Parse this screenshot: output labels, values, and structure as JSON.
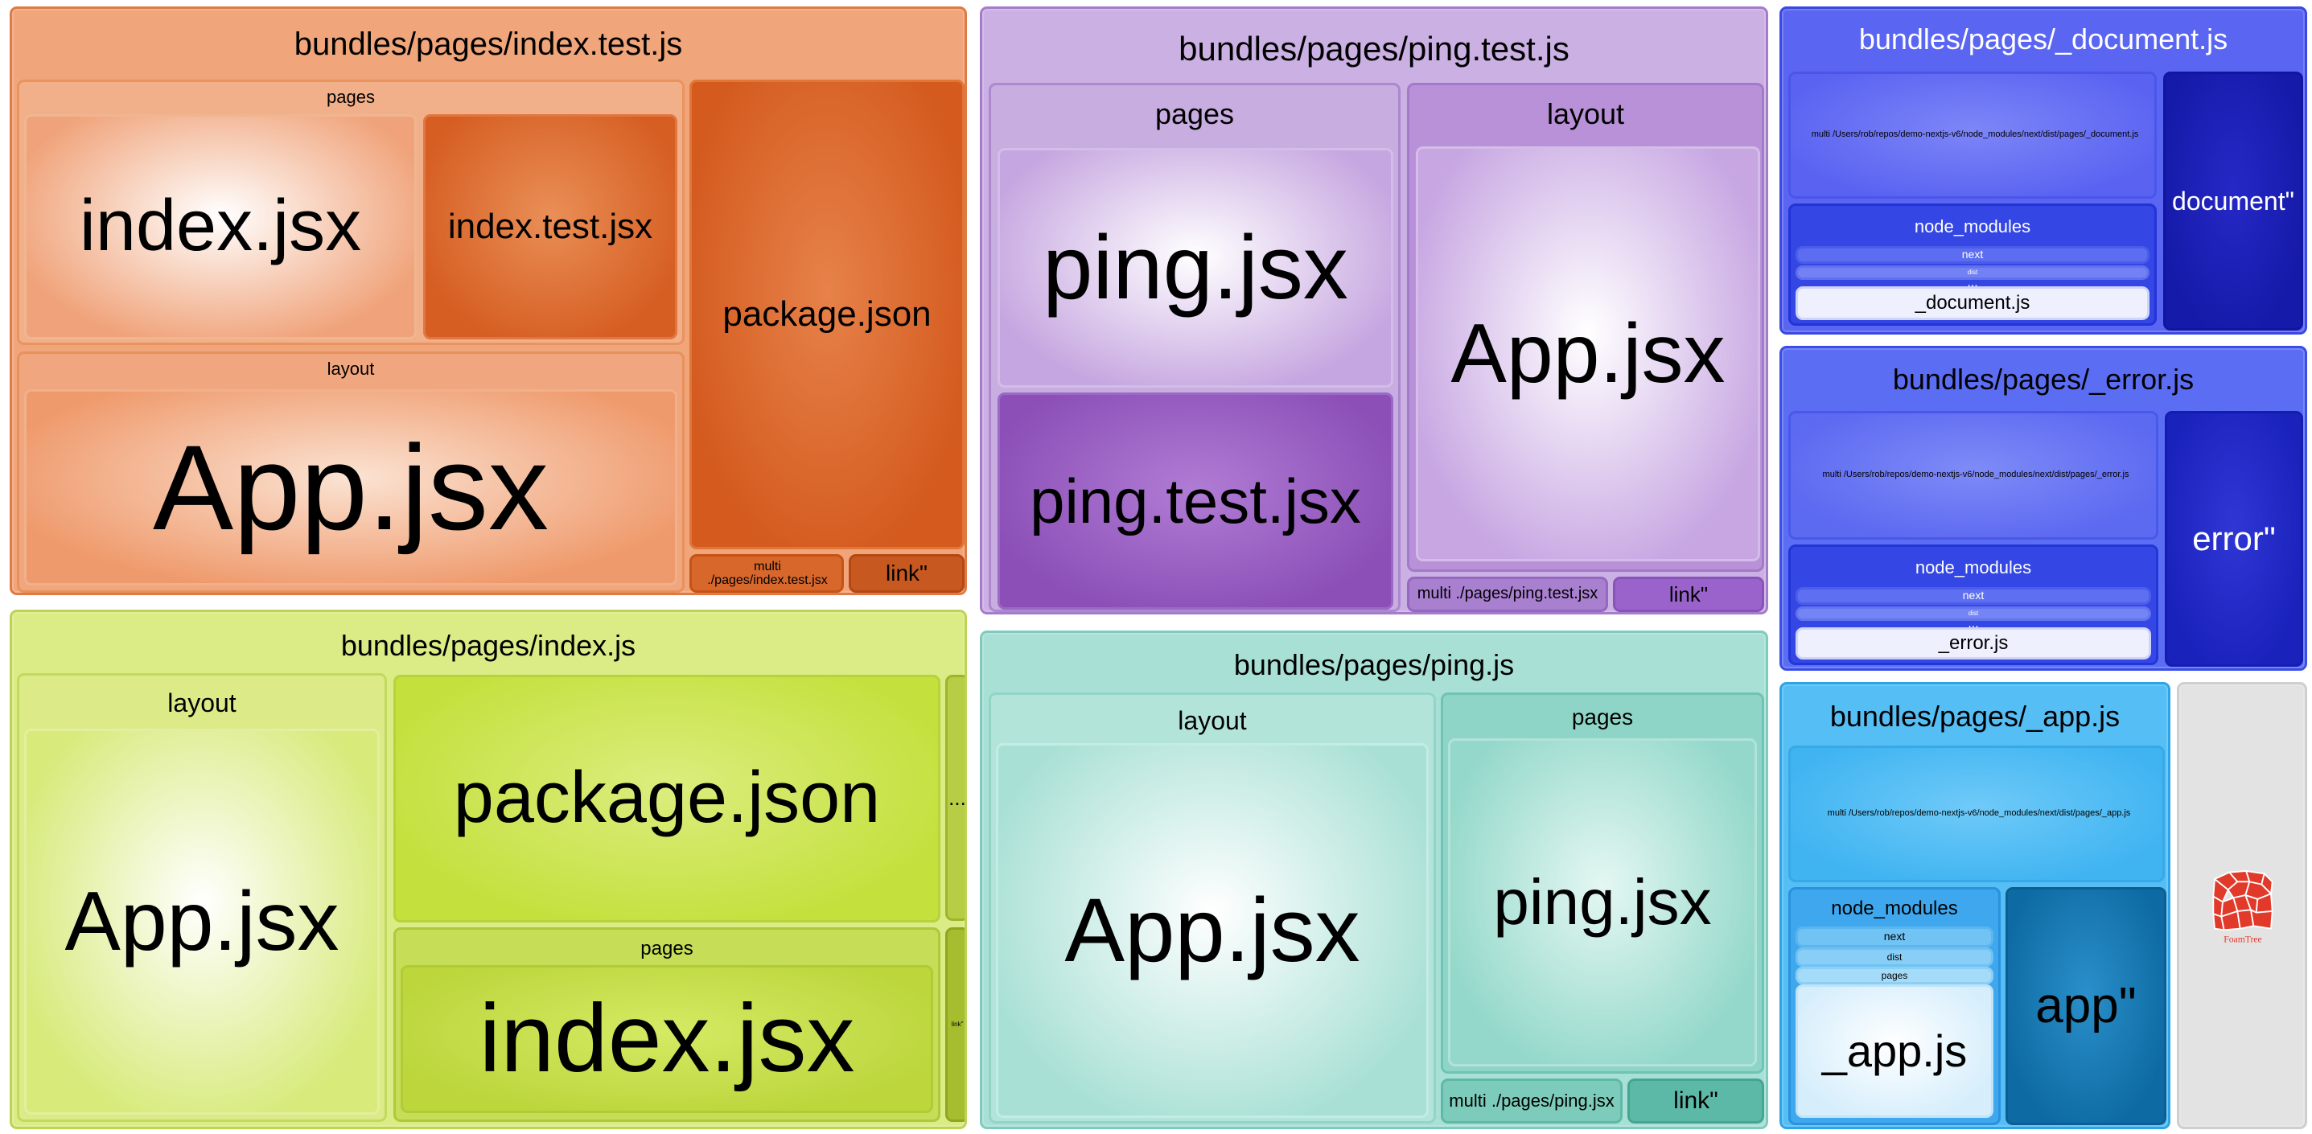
{
  "treemap": {
    "groups": [
      {
        "title": "bundles/pages/index.test.js",
        "children": [
          {
            "label": "pages",
            "children": [
              {
                "label": "index.jsx"
              },
              {
                "label": "index.test.jsx"
              }
            ]
          },
          {
            "label": "layout",
            "children": [
              {
                "label": "App.jsx"
              }
            ]
          },
          {
            "label": "package.json"
          },
          {
            "label": "multi ./pages/index.test.jsx"
          },
          {
            "label": "link\""
          }
        ]
      },
      {
        "title": "bundles/pages/ping.test.js",
        "children": [
          {
            "label": "pages",
            "children": [
              {
                "label": "ping.jsx"
              },
              {
                "label": "ping.test.jsx"
              }
            ]
          },
          {
            "label": "layout",
            "children": [
              {
                "label": "App.jsx"
              }
            ]
          },
          {
            "label": "multi ./pages/ping.test.jsx"
          },
          {
            "label": "link\""
          }
        ]
      },
      {
        "title": "bundles/pages/_document.js",
        "children": [
          {
            "label": "multi /Users/rob/repos/demo-nextjs-v6/node_modules/next/dist/pages/_document.js"
          },
          {
            "label": "node_modules",
            "children": [
              {
                "label": "next"
              },
              {
                "label": "dist"
              },
              {
                "label": "..."
              },
              {
                "label": "_document.js"
              }
            ]
          },
          {
            "label": "document\""
          }
        ]
      },
      {
        "title": "bundles/pages/_error.js",
        "children": [
          {
            "label": "multi /Users/rob/repos/demo-nextjs-v6/node_modules/next/dist/pages/_error.js"
          },
          {
            "label": "node_modules",
            "children": [
              {
                "label": "next"
              },
              {
                "label": "dist"
              },
              {
                "label": "..."
              },
              {
                "label": "_error.js"
              }
            ]
          },
          {
            "label": "error\""
          }
        ]
      },
      {
        "title": "bundles/pages/index.js",
        "children": [
          {
            "label": "layout",
            "children": [
              {
                "label": "App.jsx"
              }
            ]
          },
          {
            "label": "package.json"
          },
          {
            "label": "pages",
            "children": [
              {
                "label": "index.jsx"
              }
            ]
          },
          {
            "label": "..."
          },
          {
            "label": "link\""
          }
        ]
      },
      {
        "title": "bundles/pages/ping.js",
        "children": [
          {
            "label": "layout",
            "children": [
              {
                "label": "App.jsx"
              }
            ]
          },
          {
            "label": "pages",
            "children": [
              {
                "label": "ping.jsx"
              }
            ]
          },
          {
            "label": "multi ./pages/ping.jsx"
          },
          {
            "label": "link\""
          }
        ]
      },
      {
        "title": "bundles/pages/_app.js",
        "children": [
          {
            "label": "multi /Users/rob/repos/demo-nextjs-v6/node_modules/next/dist/pages/_app.js"
          },
          {
            "label": "node_modules",
            "children": [
              {
                "label": "next"
              },
              {
                "label": "dist"
              },
              {
                "label": "pages"
              },
              {
                "label": "_app.js"
              }
            ]
          },
          {
            "label": "app\""
          }
        ]
      },
      {
        "title": "",
        "children": []
      }
    ]
  },
  "brand": {
    "name": "FoamTree",
    "logo_icon": "foamtree-logo-icon"
  },
  "colors": {
    "orange": "#e9834c",
    "orange_dark": "#d4581c",
    "purple": "#b48fd3",
    "purple_dark": "#8e55b9",
    "blue": "#5264ee",
    "blue_dark": "#1a1ec0",
    "lime": "#d3e86a",
    "lime_dark": "#a3c12c",
    "teal": "#88d3c5",
    "teal_dark": "#47ac99",
    "sky": "#4ab3f1",
    "sky_dark": "#1778b3",
    "grey": "#e0e0e0"
  }
}
